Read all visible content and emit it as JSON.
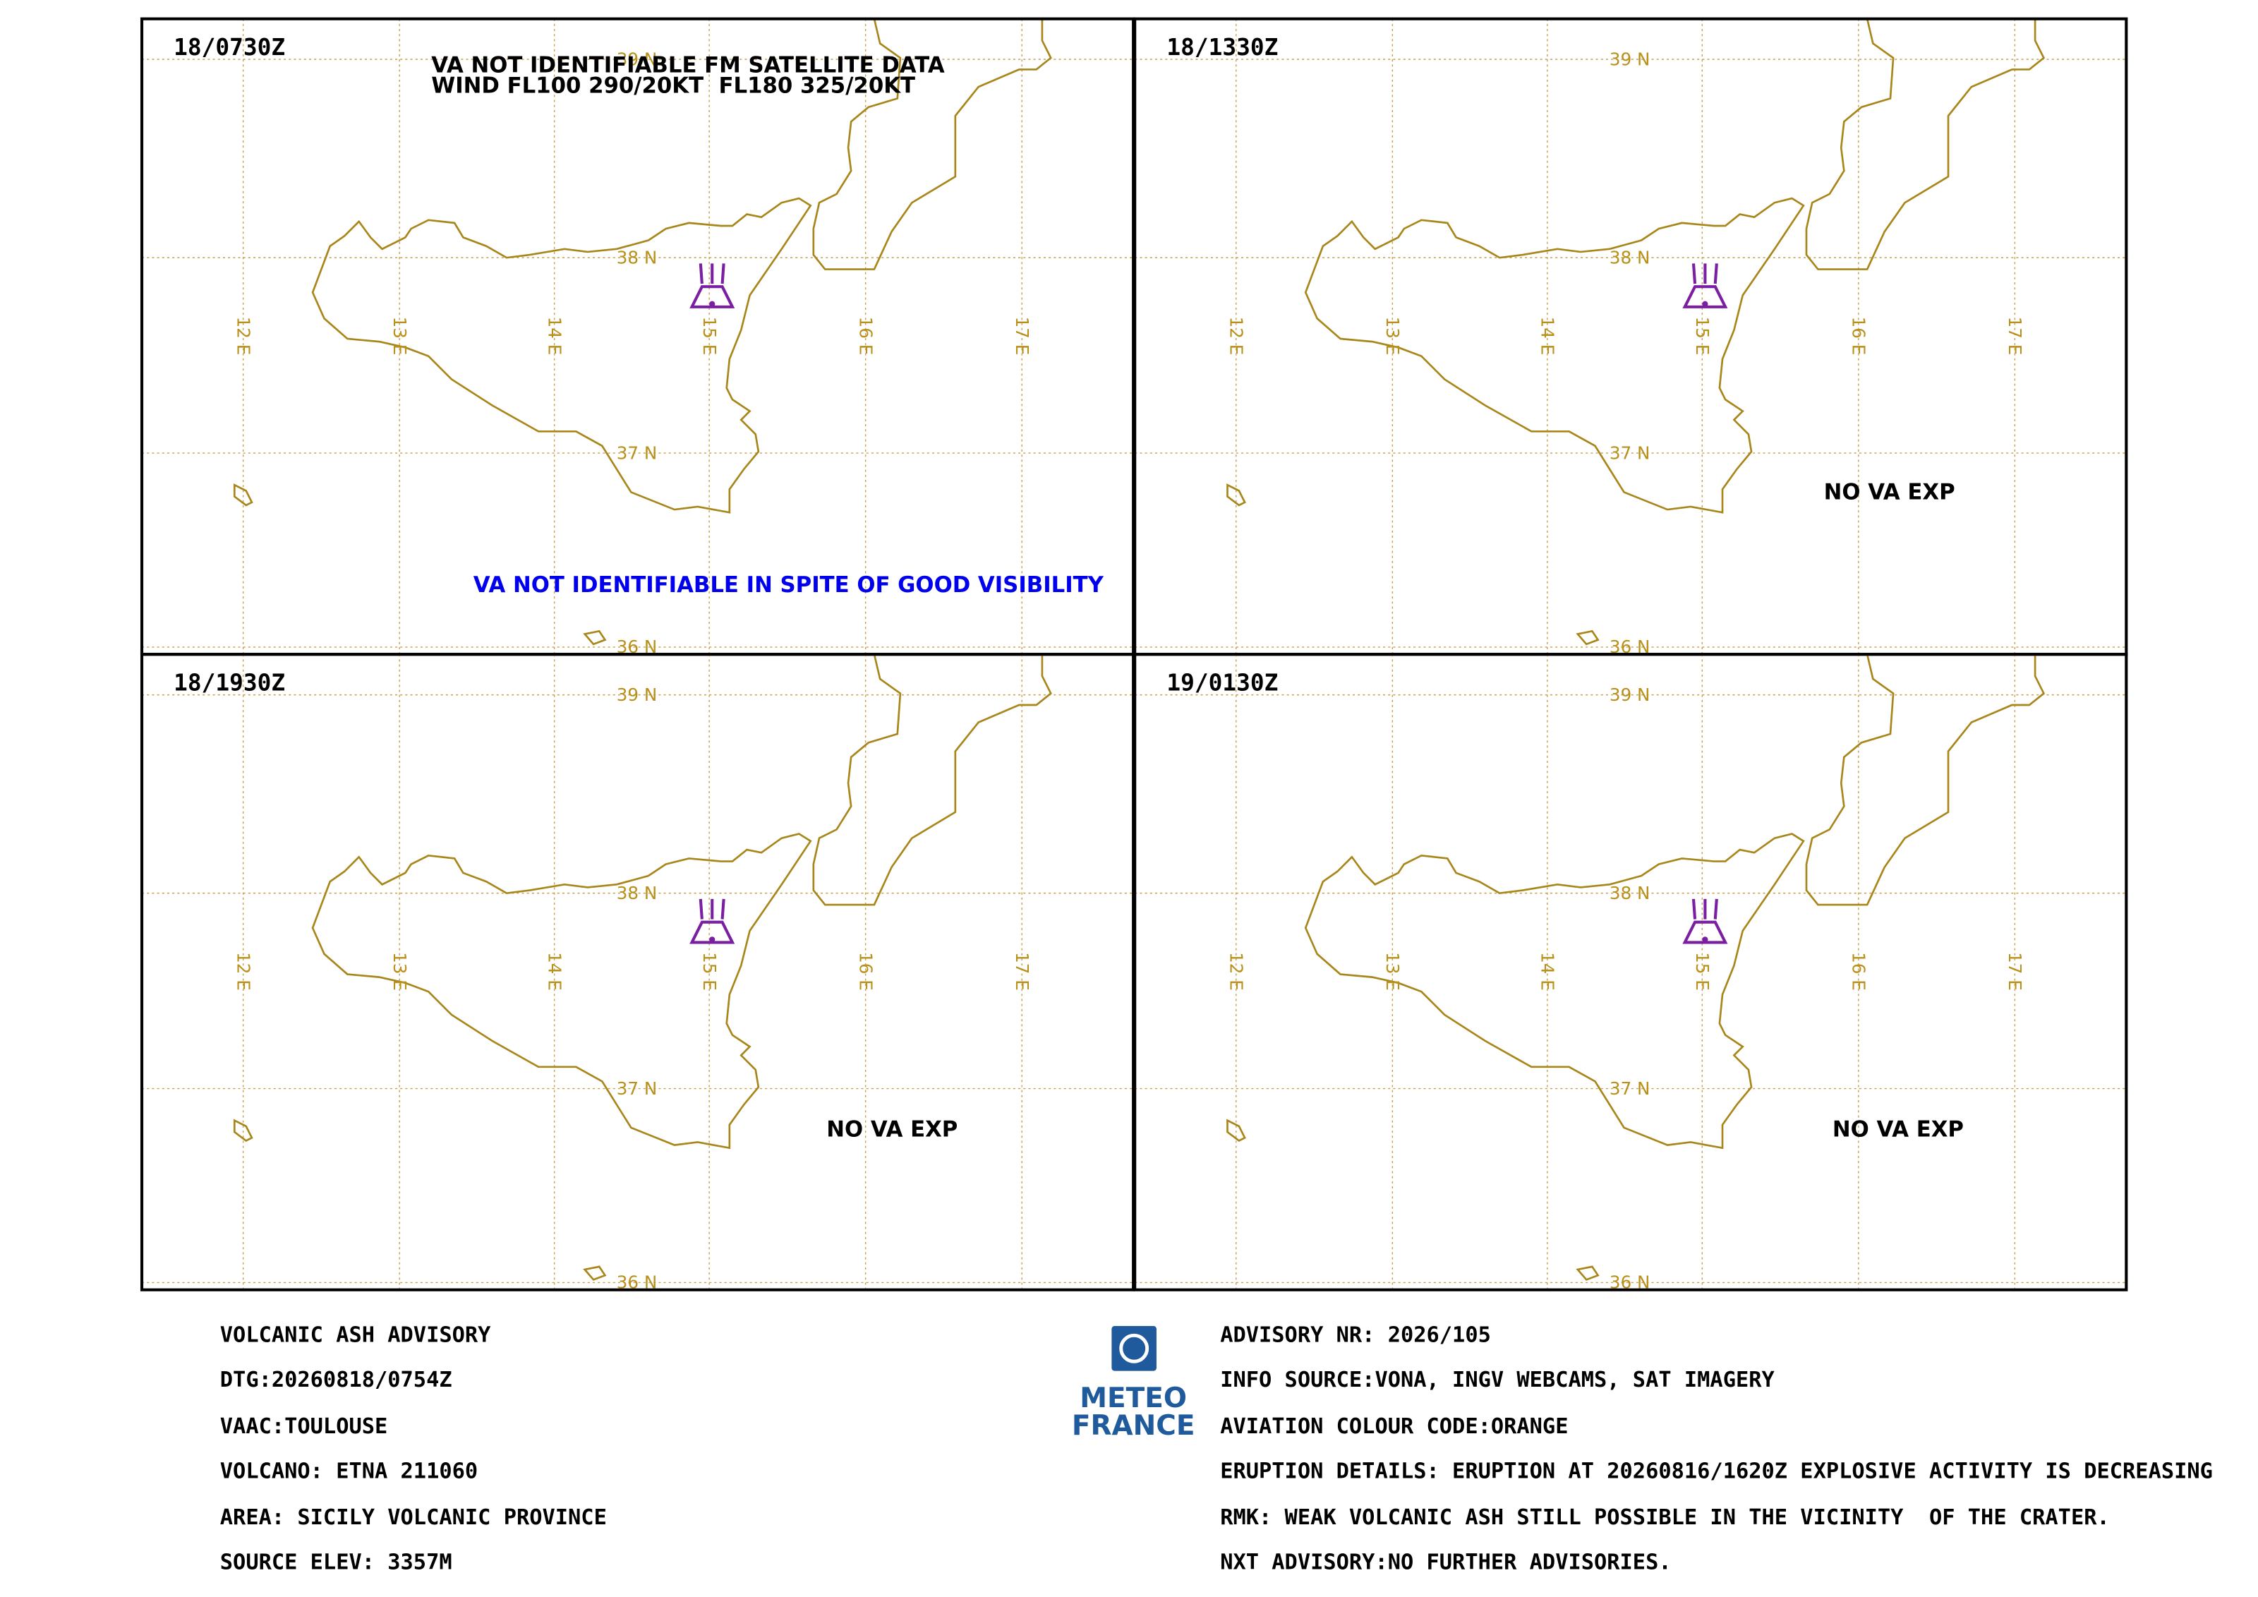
{
  "panels": [
    {
      "time": "18/0730Z",
      "notes": [
        "VA NOT IDENTIFIABLE FM SATELLITE DATA",
        "WIND FL100 290/20KT  FL180 325/20KT",
        "VA NOT IDENTIFIABLE IN SPITE OF GOOD VISIBILITY"
      ]
    },
    {
      "time": "18/1330Z",
      "notes": [
        "NO VA EXP"
      ]
    },
    {
      "time": "18/1930Z",
      "notes": [
        "NO VA EXP"
      ]
    },
    {
      "time": "19/0130Z",
      "notes": [
        "NO VA EXP"
      ]
    }
  ],
  "grid": {
    "lat_labels": [
      "39 N",
      "38 N",
      "37 N",
      "36 N"
    ],
    "lon_labels": [
      "12 E",
      "13 E",
      "14 E",
      "15 E",
      "16 E",
      "17 E"
    ]
  },
  "logo": [
    "METEO",
    "FRANCE"
  ],
  "advisory_left": [
    "VOLCANIC ASH ADVISORY",
    "DTG:20260818/0754Z",
    "VAAC:TOULOUSE",
    "VOLCANO: ETNA 211060",
    "AREA: SICILY VOLCANIC PROVINCE",
    "SOURCE ELEV: 3357M"
  ],
  "advisory_right": [
    "ADVISORY NR: 2026/105",
    "INFO SOURCE:VONA, INGV WEBCAMS, SAT IMAGERY",
    "AVIATION COLOUR CODE:ORANGE",
    "ERUPTION DETAILS: ERUPTION AT 20260816/1620Z EXPLOSIVE ACTIVITY IS DECREASING",
    "RMK: WEAK VOLCANIC ASH STILL POSSIBLE IN THE VICINITY  OF THE CRATER.",
    "NXT ADVISORY:NO FURTHER ADVISORIES."
  ]
}
